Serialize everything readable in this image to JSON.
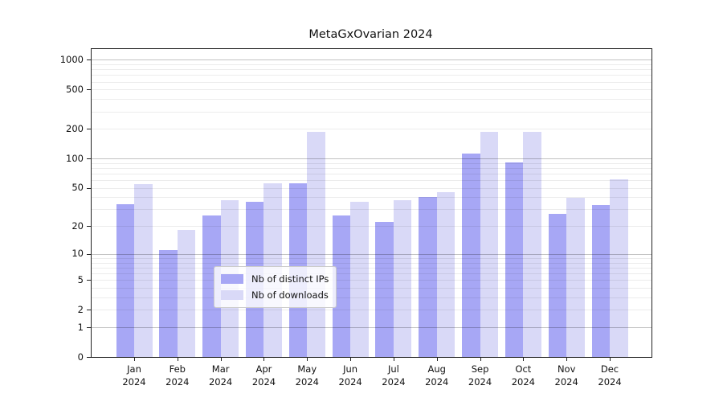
{
  "chart_data": {
    "type": "bar",
    "title": "MetaGxOvarian 2024",
    "x_tick_line2": "2024",
    "categories": [
      "Jan",
      "Feb",
      "Mar",
      "Apr",
      "May",
      "Jun",
      "Jul",
      "Aug",
      "Sep",
      "Oct",
      "Nov",
      "Dec"
    ],
    "series": [
      {
        "name": "Nb of distinct IPs",
        "color": "#A7A7F5",
        "values": [
          34,
          11,
          26,
          36,
          55,
          26,
          22,
          40,
          112,
          91,
          27,
          33
        ]
      },
      {
        "name": "Nb of downloads",
        "color": "#D9D9F7",
        "values": [
          54,
          18,
          37,
          55,
          186,
          36,
          37,
          45,
          186,
          186,
          39,
          61
        ]
      }
    ],
    "y_axis": {
      "scale": "log1p",
      "ylim": [
        0,
        1270
      ],
      "major_tick_labels": [
        0,
        1,
        2,
        5,
        10,
        20,
        50,
        100,
        200,
        500,
        1000
      ],
      "major_gridlines": [
        1,
        10,
        100,
        1000
      ],
      "minor_gridlines": [
        2,
        3,
        4,
        5,
        6,
        7,
        8,
        9,
        20,
        30,
        40,
        50,
        60,
        70,
        80,
        90,
        200,
        300,
        400,
        500,
        600,
        700,
        800,
        900
      ]
    },
    "grid": true,
    "legend_position": "bottom-center"
  }
}
